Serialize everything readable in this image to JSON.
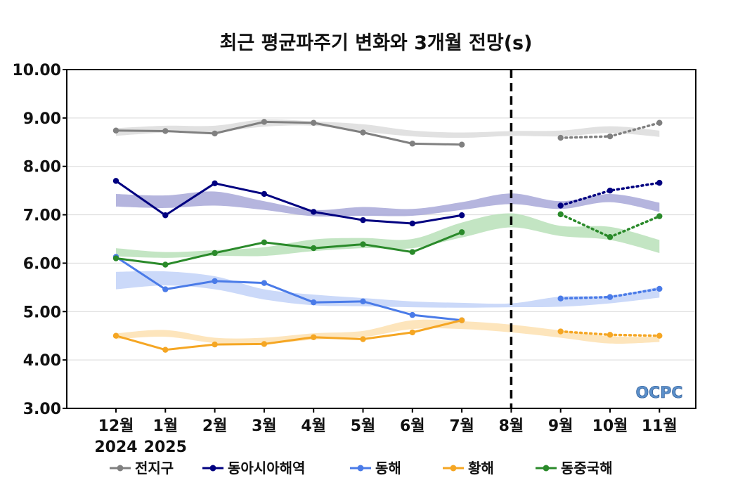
{
  "chart_data": {
    "type": "line",
    "title": "최근 평균파주기 변화와 3개월 전망(s)",
    "xlabel": "",
    "ylabel": "",
    "ylim": [
      3,
      10
    ],
    "yticks": [
      "3.00",
      "4.00",
      "5.00",
      "6.00",
      "7.00",
      "8.00",
      "9.00",
      "10.00"
    ],
    "categories": [
      "12월",
      "1월",
      "2월",
      "3월",
      "4월",
      "5월",
      "6월",
      "7월",
      "8월",
      "9월",
      "10월",
      "11월"
    ],
    "year_labels": [
      {
        "label": "2024",
        "index": 0
      },
      {
        "label": "2025",
        "index": 1
      }
    ],
    "forecast_divider_index": 8,
    "grid": true,
    "legend_position": "bottom",
    "logo": "OCPC",
    "series": [
      {
        "name": "전지구",
        "color": "#808080",
        "band_color": "#dcdcdc",
        "observed": [
          8.74,
          8.73,
          8.68,
          8.92,
          8.9,
          8.7,
          8.47,
          8.45
        ],
        "forecast": {
          "x_index": [
            9,
            10,
            11
          ],
          "values": [
            8.59,
            8.62,
            8.9
          ]
        },
        "band_low": [
          8.63,
          8.7,
          8.71,
          8.82,
          8.84,
          8.72,
          8.62,
          8.59,
          8.63,
          8.62,
          8.69,
          8.61
        ],
        "band_high": [
          8.79,
          8.84,
          8.84,
          8.97,
          8.93,
          8.87,
          8.74,
          8.7,
          8.73,
          8.74,
          8.83,
          8.74
        ]
      },
      {
        "name": "동아시아해역",
        "color": "#000080",
        "band_color": "#a8a8d8",
        "observed": [
          7.7,
          6.99,
          7.65,
          7.43,
          7.06,
          6.89,
          6.82,
          6.99
        ],
        "forecast": {
          "x_index": [
            9,
            10,
            11
          ],
          "values": [
            7.19,
            7.5,
            7.66
          ]
        },
        "band_low": [
          7.17,
          7.14,
          7.19,
          7.1,
          6.97,
          6.98,
          6.98,
          7.1,
          7.22,
          7.12,
          7.26,
          7.06
        ],
        "band_high": [
          7.43,
          7.4,
          7.48,
          7.28,
          7.1,
          7.16,
          7.12,
          7.26,
          7.44,
          7.28,
          7.43,
          7.25
        ]
      },
      {
        "name": "동해",
        "color": "#4a7be8",
        "band_color": "#c2d2f8",
        "observed": [
          6.13,
          5.46,
          5.63,
          5.59,
          5.19,
          5.21,
          4.93,
          4.82
        ],
        "forecast": {
          "x_index": [
            9,
            10,
            11
          ],
          "values": [
            5.27,
            5.3,
            5.47
          ]
        },
        "band_low": [
          5.46,
          5.54,
          5.46,
          5.25,
          5.13,
          5.11,
          5.09,
          5.08,
          5.09,
          5.1,
          5.17,
          5.29
        ],
        "band_high": [
          5.82,
          5.83,
          5.73,
          5.46,
          5.35,
          5.28,
          5.21,
          5.18,
          5.17,
          5.31,
          5.33,
          5.51
        ]
      },
      {
        "name": "황해",
        "color": "#f5a623",
        "band_color": "#fde0b0",
        "observed": [
          4.5,
          4.21,
          4.32,
          4.33,
          4.47,
          4.43,
          4.57,
          4.82
        ],
        "forecast": {
          "x_index": [
            9,
            10,
            11
          ],
          "values": [
            4.59,
            4.52,
            4.5
          ]
        },
        "band_low": [
          4.43,
          4.48,
          4.35,
          4.33,
          4.42,
          4.47,
          4.64,
          4.64,
          4.57,
          4.46,
          4.34,
          4.37
        ],
        "band_high": [
          4.55,
          4.62,
          4.46,
          4.46,
          4.55,
          4.6,
          4.82,
          4.8,
          4.73,
          4.61,
          4.49,
          4.48
        ]
      },
      {
        "name": "동중국해",
        "color": "#2a8a2a",
        "band_color": "#b8e0b8",
        "observed": [
          6.1,
          5.97,
          6.21,
          6.43,
          6.31,
          6.39,
          6.23,
          6.64
        ],
        "forecast": {
          "x_index": [
            9,
            10,
            11
          ],
          "values": [
            7.01,
            6.54,
            6.97
          ]
        },
        "band_low": [
          6.14,
          6.11,
          6.15,
          6.15,
          6.25,
          6.31,
          6.31,
          6.53,
          6.74,
          6.56,
          6.48,
          6.21
        ],
        "band_high": [
          6.31,
          6.23,
          6.27,
          6.33,
          6.49,
          6.52,
          6.5,
          6.84,
          7.03,
          6.77,
          6.75,
          6.48
        ]
      }
    ]
  }
}
